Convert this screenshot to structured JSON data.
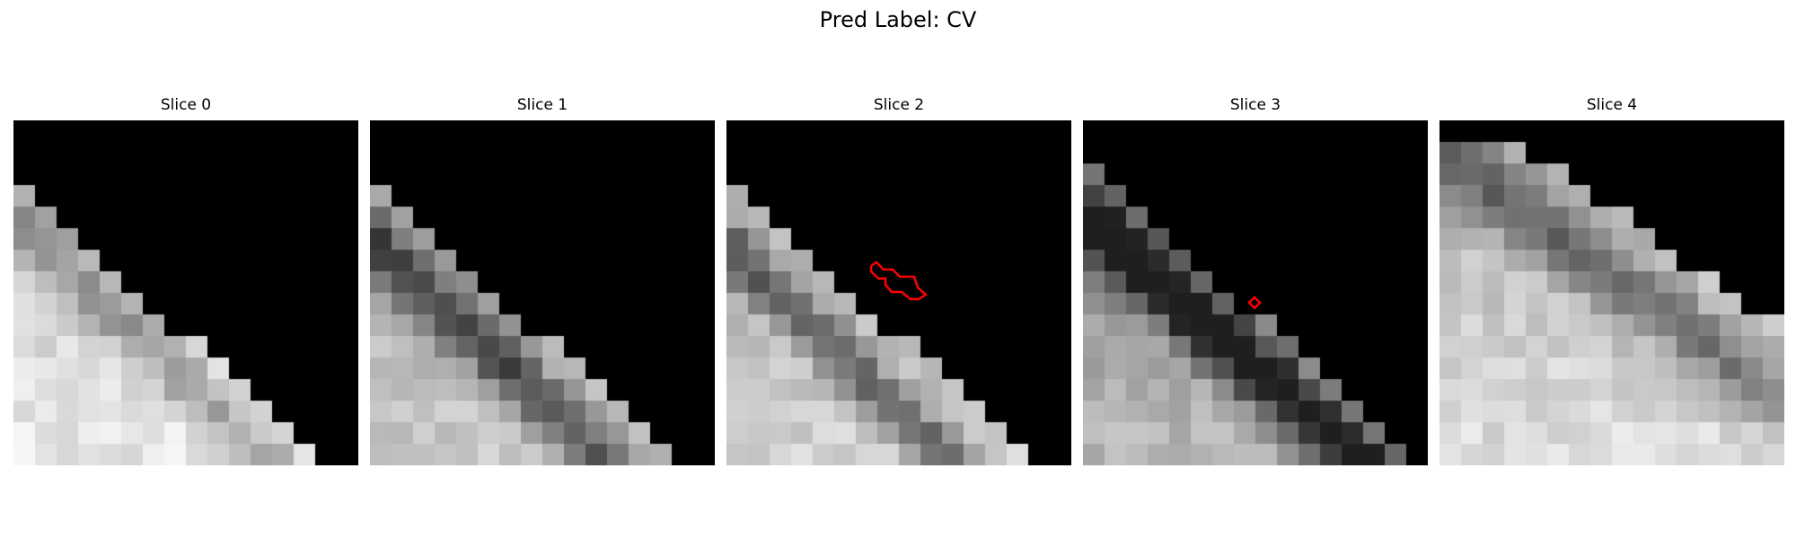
{
  "figure": {
    "title": "Pred Label: CV"
  },
  "slices": [
    {
      "title": "Slice 0"
    },
    {
      "title": "Slice 1"
    },
    {
      "title": "Slice 2"
    },
    {
      "title": "Slice 3"
    },
    {
      "title": "Slice 4"
    }
  ],
  "colors": {
    "background": "#ffffff",
    "contour": "#ff0000",
    "masked": "#000000"
  }
}
